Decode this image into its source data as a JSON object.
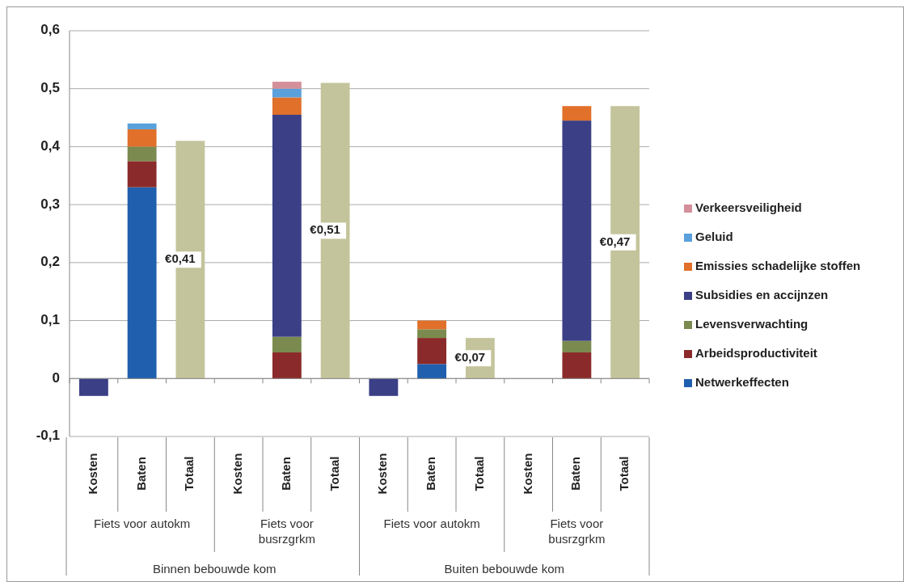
{
  "chart_data": {
    "type": "bar",
    "stacked": true,
    "categories": [
      "Kosten",
      "Baten",
      "Totaal",
      "Kosten",
      "Baten",
      "Totaal",
      "Kosten",
      "Baten",
      "Totaal",
      "Kosten",
      "Baten",
      "Totaal"
    ],
    "series": [
      {
        "name": "Netwerkeffecten",
        "color": "#1f5fae",
        "values": [
          null,
          0.33,
          null,
          null,
          null,
          null,
          null,
          0.025,
          null,
          null,
          null,
          null
        ]
      },
      {
        "name": "Arbeidsproductiviteit",
        "color": "#8b2a2a",
        "values": [
          null,
          0.045,
          null,
          null,
          0.045,
          null,
          null,
          0.045,
          null,
          null,
          0.045,
          null
        ]
      },
      {
        "name": "Levensverwachting",
        "color": "#7b8a4e",
        "values": [
          null,
          0.025,
          null,
          null,
          0.027,
          null,
          null,
          0.015,
          null,
          null,
          0.02,
          null
        ]
      },
      {
        "name": "Subsidies en accijnzen",
        "color": "#3a3f86",
        "values": [
          -0.03,
          null,
          null,
          null,
          0.383,
          null,
          -0.03,
          null,
          null,
          null,
          0.38,
          null
        ]
      },
      {
        "name": "Emissies schadelijke stoffen",
        "color": "#e0702a",
        "values": [
          null,
          0.03,
          null,
          null,
          0.03,
          null,
          null,
          0.015,
          null,
          null,
          0.025,
          null
        ]
      },
      {
        "name": "Geluid",
        "color": "#5aa0dc",
        "values": [
          null,
          0.01,
          null,
          null,
          0.015,
          null,
          null,
          null,
          null,
          null,
          null,
          null
        ]
      },
      {
        "name": "Verkeersveiligheid",
        "color": "#d4909a",
        "values": [
          null,
          null,
          null,
          null,
          0.012,
          null,
          null,
          null,
          null,
          null,
          null,
          null
        ]
      },
      {
        "color": "#c4c49c",
        "values": [
          null,
          null,
          0.41,
          null,
          null,
          0.51,
          null,
          null,
          0.07,
          null,
          null,
          0.47
        ],
        "value_labels": [
          null,
          null,
          "€0,41",
          null,
          null,
          "€0,51",
          null,
          null,
          "€0,07",
          null,
          null,
          "€0,47"
        ]
      }
    ],
    "ylim": [
      -0.1,
      0.6
    ],
    "yticks": [
      {
        "value": -0.1,
        "label": "-0,1"
      },
      0,
      {
        "value": 0.1,
        "label": "0,1"
      },
      {
        "value": 0.2,
        "label": "0,2"
      },
      {
        "value": 0.3,
        "label": "0,3"
      },
      {
        "value": 0.4,
        "label": "0,4"
      },
      {
        "value": 0.5,
        "label": "0,5"
      },
      {
        "value": 0.6,
        "label": "0,6"
      }
    ],
    "grid": "y",
    "legend": "right",
    "annotations": [
      "Fiets voor autokm",
      "Fiets voor busrzgrkm",
      "Fiets voor autokm",
      "Fiets voor busrzgrkm",
      "Binnen bebouwde kom",
      "Buiten bebouwde kom"
    ]
  }
}
